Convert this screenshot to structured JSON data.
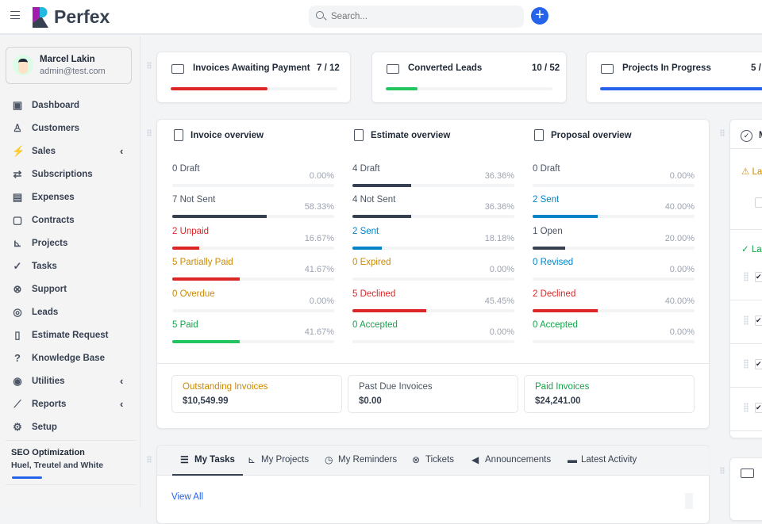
{
  "header": {
    "brand": "Perfex",
    "search_placeholder": "Search...",
    "add_label": "+"
  },
  "user": {
    "name": "Marcel Lakin",
    "email": "admin@test.com"
  },
  "sidebar": {
    "items": [
      {
        "label": "Dashboard",
        "icon": "dashboard-icon",
        "glyph": "▣"
      },
      {
        "label": "Customers",
        "icon": "user-icon",
        "glyph": "♙"
      },
      {
        "label": "Sales",
        "icon": "bolt-icon",
        "glyph": "⚡",
        "chevron": "‹"
      },
      {
        "label": "Subscriptions",
        "icon": "refresh-icon",
        "glyph": "⇄"
      },
      {
        "label": "Expenses",
        "icon": "file-icon",
        "glyph": "▤"
      },
      {
        "label": "Contracts",
        "icon": "contract-icon",
        "glyph": "▢"
      },
      {
        "label": "Projects",
        "icon": "chart-bar-icon",
        "glyph": "⊾"
      },
      {
        "label": "Tasks",
        "icon": "check-circle-icon",
        "glyph": "✓"
      },
      {
        "label": "Support",
        "icon": "lifebuoy-icon",
        "glyph": "⊗"
      },
      {
        "label": "Leads",
        "icon": "target-icon",
        "glyph": "◎"
      },
      {
        "label": "Estimate Request",
        "icon": "document-icon",
        "glyph": "▯"
      },
      {
        "label": "Knowledge Base",
        "icon": "question-icon",
        "glyph": "?"
      },
      {
        "label": "Utilities",
        "icon": "radio-icon",
        "glyph": "◉",
        "chevron": "‹"
      },
      {
        "label": "Reports",
        "icon": "line-chart-icon",
        "glyph": "⟋",
        "chevron": "‹"
      },
      {
        "label": "Setup",
        "icon": "gear-icon",
        "glyph": "⚙"
      }
    ],
    "project": {
      "title": "SEO Optimization",
      "client": "Huel, Treutel and White",
      "progress": 0.25
    }
  },
  "stats": [
    {
      "label": "Invoices Awaiting Payment",
      "value": "7 / 12",
      "progress": 58.33,
      "color": "#dc2626",
      "icon": "money-icon"
    },
    {
      "label": "Converted Leads",
      "value": "10 / 52",
      "progress": 19.23,
      "color": "#22c55e",
      "icon": "trending-up-icon"
    },
    {
      "label": "Projects In Progress",
      "value": "5 /",
      "progress": 100,
      "color": "#2563eb",
      "icon": "sliders-icon"
    }
  ],
  "overview": [
    {
      "title": "Invoice overview",
      "rows": [
        {
          "label": "0 Draft",
          "pct": "0.00%",
          "value": 0,
          "color": "#4b5563",
          "bar": "#374151"
        },
        {
          "label": "7 Not Sent",
          "pct": "58.33%",
          "value": 58.33,
          "color": "#4b5563",
          "bar": "#374151"
        },
        {
          "label": "2 Unpaid",
          "pct": "16.67%",
          "value": 16.67,
          "color": "#dc2626",
          "bar": "#dc2626"
        },
        {
          "label": "5 Partially Paid",
          "pct": "41.67%",
          "value": 41.67,
          "color": "#ca8a04",
          "bar": "#dc2626"
        },
        {
          "label": "0 Overdue",
          "pct": "0.00%",
          "value": 0,
          "color": "#ca8a04",
          "bar": "#ca8a04"
        },
        {
          "label": "5 Paid",
          "pct": "41.67%",
          "value": 41.67,
          "color": "#16a34a",
          "bar": "#22c55e"
        }
      ]
    },
    {
      "title": "Estimate overview",
      "rows": [
        {
          "label": "4 Draft",
          "pct": "36.36%",
          "value": 36.36,
          "color": "#4b5563",
          "bar": "#374151"
        },
        {
          "label": "4 Not Sent",
          "pct": "36.36%",
          "value": 36.36,
          "color": "#4b5563",
          "bar": "#374151"
        },
        {
          "label": "2 Sent",
          "pct": "18.18%",
          "value": 18.18,
          "color": "#0284c7",
          "bar": "#0284c7"
        },
        {
          "label": "0 Expired",
          "pct": "0.00%",
          "value": 0,
          "color": "#ca8a04",
          "bar": "#ca8a04"
        },
        {
          "label": "5 Declined",
          "pct": "45.45%",
          "value": 45.45,
          "color": "#dc2626",
          "bar": "#dc2626"
        },
        {
          "label": "0 Accepted",
          "pct": "0.00%",
          "value": 0,
          "color": "#16a34a",
          "bar": "#22c55e"
        }
      ]
    },
    {
      "title": "Proposal overview",
      "rows": [
        {
          "label": "0 Draft",
          "pct": "0.00%",
          "value": 0,
          "color": "#4b5563",
          "bar": "#374151"
        },
        {
          "label": "2 Sent",
          "pct": "40.00%",
          "value": 40,
          "color": "#0284c7",
          "bar": "#0284c7"
        },
        {
          "label": "1 Open",
          "pct": "20.00%",
          "value": 20,
          "color": "#4b5563",
          "bar": "#374151"
        },
        {
          "label": "0 Revised",
          "pct": "0.00%",
          "value": 0,
          "color": "#0284c7",
          "bar": "#0284c7"
        },
        {
          "label": "2 Declined",
          "pct": "40.00%",
          "value": 40,
          "color": "#dc2626",
          "bar": "#dc2626"
        },
        {
          "label": "0 Accepted",
          "pct": "0.00%",
          "value": 0,
          "color": "#16a34a",
          "bar": "#22c55e"
        }
      ]
    }
  ],
  "summary": [
    {
      "label": "Outstanding Invoices",
      "amount": "$10,549.99",
      "color": "#ca8a04"
    },
    {
      "label": "Past Due Invoices",
      "amount": "$0.00",
      "color": "#4b5563"
    },
    {
      "label": "Paid Invoices",
      "amount": "$24,241.00",
      "color": "#16a34a"
    }
  ],
  "tabs": [
    {
      "label": "My Tasks",
      "icon": "task-list-icon",
      "glyph": "☰",
      "active": true
    },
    {
      "label": "My Projects",
      "icon": "chart-bar-icon",
      "glyph": "⊾"
    },
    {
      "label": "My Reminders",
      "icon": "clock-icon",
      "glyph": "◷"
    },
    {
      "label": "Tickets",
      "icon": "lifebuoy-icon",
      "glyph": "⊗"
    },
    {
      "label": "Announcements",
      "icon": "megaphone-icon",
      "glyph": "◀"
    },
    {
      "label": "Latest Activity",
      "icon": "calendar-icon",
      "glyph": "▬"
    }
  ],
  "view_all": "View All",
  "right_panel": {
    "title_partial": "M",
    "late_partial": "La",
    "done_partial": "La"
  }
}
